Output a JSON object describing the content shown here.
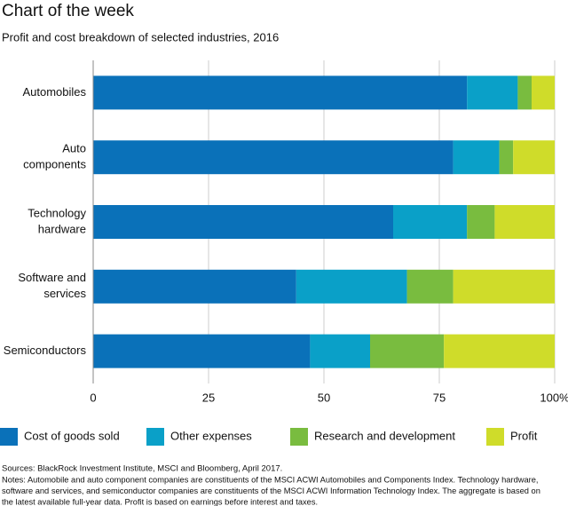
{
  "chart_data": {
    "type": "bar",
    "orientation": "horizontal",
    "stacked": true,
    "title": "Chart of the week",
    "subtitle": "Profit and cost breakdown of selected industries, 2016",
    "categories": [
      [
        "Automobiles"
      ],
      [
        "Auto",
        "components"
      ],
      [
        "Technology",
        "hardware"
      ],
      [
        "Software and",
        "services"
      ],
      [
        "Semiconductors"
      ]
    ],
    "series": [
      {
        "name": "Cost of goods sold",
        "color": "#0a71b9",
        "values": [
          81,
          78,
          65,
          44,
          47
        ]
      },
      {
        "name": "Other expenses",
        "color": "#0aa0c8",
        "values": [
          11,
          10,
          16,
          24,
          13
        ]
      },
      {
        "name": "Research and development",
        "color": "#79bc3f",
        "values": [
          3,
          3,
          6,
          10,
          16
        ]
      },
      {
        "name": "Profit",
        "color": "#cfdc2a",
        "values": [
          5,
          9,
          13,
          22,
          24
        ]
      }
    ],
    "xlim": [
      0,
      100
    ],
    "xticks": [
      0,
      25,
      50,
      75,
      {
        "value": 100,
        "label": "100%"
      }
    ],
    "grid": true,
    "legend": "bottom",
    "sources": "Sources: BlackRock Investment Institute, MSCI and Bloomberg, April 2017.",
    "notes": [
      "Notes: Automobile and auto component companies are constituents of the MSCI ACWI Automobiles and Components Index. Technology hardware,",
      "software and services, and semiconductor companies are constituents of the MSCI ACWI Information Technology Index. The aggregate is based on",
      "the latest available full-year data. Profit is based on earnings before interest and taxes."
    ]
  }
}
